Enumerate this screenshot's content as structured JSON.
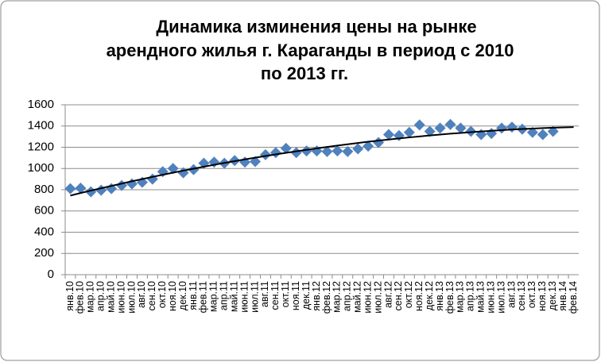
{
  "chart_data": {
    "type": "scatter",
    "title": [
      "Динамика изминения цены на рынке",
      "арендного жилья г. Караганды в период с 2010",
      "по 2013 гг."
    ],
    "categories": [
      "янв.10",
      "фев.10",
      "мар.10",
      "апр.10",
      "май.10",
      "июн.10",
      "июл.10",
      "авг.10",
      "сен.10",
      "окт.10",
      "ноя.10",
      "дек.10",
      "янв.11",
      "фев.11",
      "мар.11",
      "апр.11",
      "май.11",
      "июн.11",
      "июл.11",
      "авг.11",
      "сен.11",
      "окт.11",
      "ноя.11",
      "дек.11",
      "янв.12",
      "фев.12",
      "мар.12",
      "апр.12",
      "май.12",
      "июн.12",
      "июл.12",
      "авг.12",
      "сен.12",
      "окт.12",
      "ноя.12",
      "дек.12",
      "янв.13",
      "фев.13",
      "мар.13",
      "апр.13",
      "май.13",
      "июн.13",
      "июл.13",
      "авг.13",
      "сен.13",
      "окт.13",
      "ноя.13",
      "дек.13",
      "янв.14",
      "фев.14"
    ],
    "values": [
      810,
      815,
      780,
      795,
      810,
      840,
      855,
      870,
      900,
      970,
      1000,
      960,
      990,
      1050,
      1060,
      1050,
      1075,
      1060,
      1065,
      1130,
      1150,
      1190,
      1150,
      1165,
      1165,
      1160,
      1165,
      1160,
      1185,
      1210,
      1245,
      1320,
      1310,
      1340,
      1410,
      1350,
      1380,
      1415,
      1380,
      1350,
      1320,
      1330,
      1380,
      1390,
      1370,
      1340,
      1320,
      1350,
      null,
      null
    ],
    "color": "#4f81bd",
    "trend": {
      "color": "#000000",
      "values": [
        745,
        769,
        792,
        814,
        836,
        858,
        880,
        900,
        921,
        941,
        961,
        980,
        998,
        1017,
        1035,
        1052,
        1069,
        1086,
        1102,
        1118,
        1133,
        1148,
        1162,
        1176,
        1190,
        1203,
        1216,
        1228,
        1240,
        1252,
        1263,
        1273,
        1283,
        1293,
        1302,
        1311,
        1320,
        1328,
        1335,
        1342,
        1349,
        1355,
        1361,
        1367,
        1372,
        1376,
        1380,
        1384,
        1387,
        1390
      ]
    },
    "ylim": [
      0,
      1600
    ],
    "yticks": [
      0,
      200,
      400,
      600,
      800,
      1000,
      1200,
      1400,
      1600
    ],
    "grid": true
  }
}
